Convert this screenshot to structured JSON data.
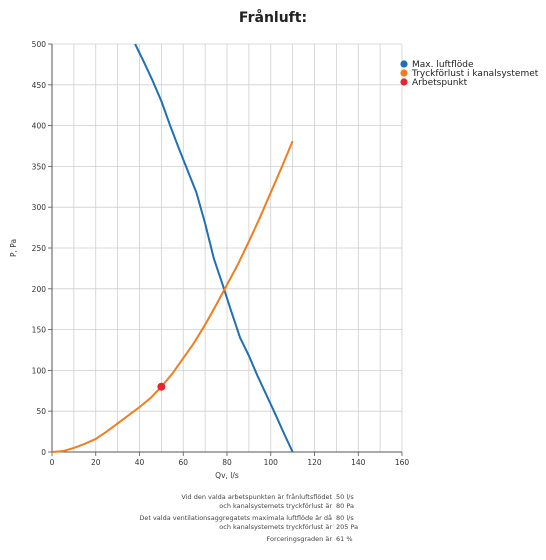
{
  "chart_data": {
    "type": "line",
    "title": "Frånluft:",
    "xlabel": "Qv, l/s",
    "ylabel": "P, Pa",
    "xlim": [
      0,
      160
    ],
    "ylim": [
      0,
      500
    ],
    "xticks": [
      0,
      20,
      40,
      60,
      80,
      100,
      120,
      140,
      160
    ],
    "yticks": [
      0,
      50,
      100,
      150,
      200,
      250,
      300,
      350,
      400,
      450,
      500
    ],
    "grid": true,
    "legend_position": "top-right",
    "series": [
      {
        "name": "Max. luftflöde",
        "color": "#1f6fb4",
        "x": [
          38,
          42,
          46,
          50,
          54,
          58,
          62,
          66,
          70,
          74,
          78,
          82,
          86,
          90,
          94,
          98,
          102,
          106,
          110
        ],
        "y": [
          500,
          478,
          455,
          430,
          400,
          372,
          345,
          318,
          280,
          237,
          205,
          172,
          140,
          118,
          93,
          70,
          47,
          23,
          0
        ]
      },
      {
        "name": "Tryckförlust i kanalsystemet",
        "color": "#f07d1e",
        "x": [
          0,
          5,
          10,
          15,
          20,
          25,
          30,
          35,
          40,
          45,
          50,
          55,
          60,
          65,
          70,
          75,
          80,
          85,
          90,
          95,
          100,
          105,
          110
        ],
        "y": [
          0,
          1,
          5,
          10,
          16,
          25,
          35,
          45,
          55,
          66,
          80,
          96,
          115,
          134,
          156,
          180,
          205,
          230,
          258,
          287,
          318,
          349,
          381
        ]
      },
      {
        "name": "Arbetspunkt",
        "color": "#e3272d",
        "type": "scatter",
        "x": [
          50
        ],
        "y": [
          80
        ]
      }
    ]
  },
  "summary": [
    {
      "text": "Vid den valda arbetspunkten är frånluftsflödet",
      "value": "50 l/s"
    },
    {
      "text": "och kanalsystemets tryckförlust är",
      "value": "80 Pa"
    },
    {
      "text": "Det valda ventilationsaggregatets maximala luftflöde är då",
      "value": "80 l/s"
    },
    {
      "text": "och kanalsystemets tryckförlust är",
      "value": "205 Pa"
    },
    {
      "text": "Forceringsgraden är",
      "value": "61  %"
    }
  ]
}
